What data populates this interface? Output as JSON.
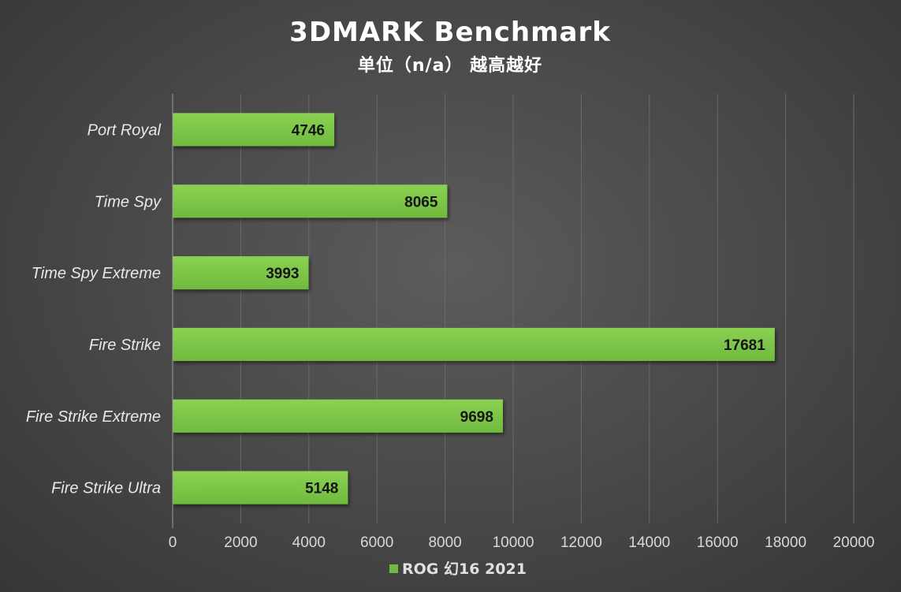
{
  "chart_data": {
    "type": "bar",
    "orientation": "horizontal",
    "title": "3DMARK Benchmark",
    "subtitle": "单位（n/a） 越高越好",
    "categories": [
      "Port Royal",
      "Time Spy",
      "Time Spy Extreme",
      "Fire Strike",
      "Fire Strike Extreme",
      "Fire Strike Ultra"
    ],
    "series": [
      {
        "name": "ROG 幻16 2021",
        "values": [
          4746,
          8065,
          3993,
          17681,
          9698,
          5148
        ]
      }
    ],
    "xlim": [
      0,
      20000
    ],
    "xticks": [
      0,
      2000,
      4000,
      6000,
      8000,
      10000,
      12000,
      14000,
      16000,
      18000,
      20000
    ],
    "xlabel": "",
    "ylabel": "",
    "grid": "vertical",
    "legend_position": "bottom",
    "data_labels": "inside-end"
  },
  "colors": {
    "bar": "#6fba3f",
    "bar_light": "#8bd152",
    "grid": "#6a6a6a",
    "axis": "#9a9a9a"
  }
}
